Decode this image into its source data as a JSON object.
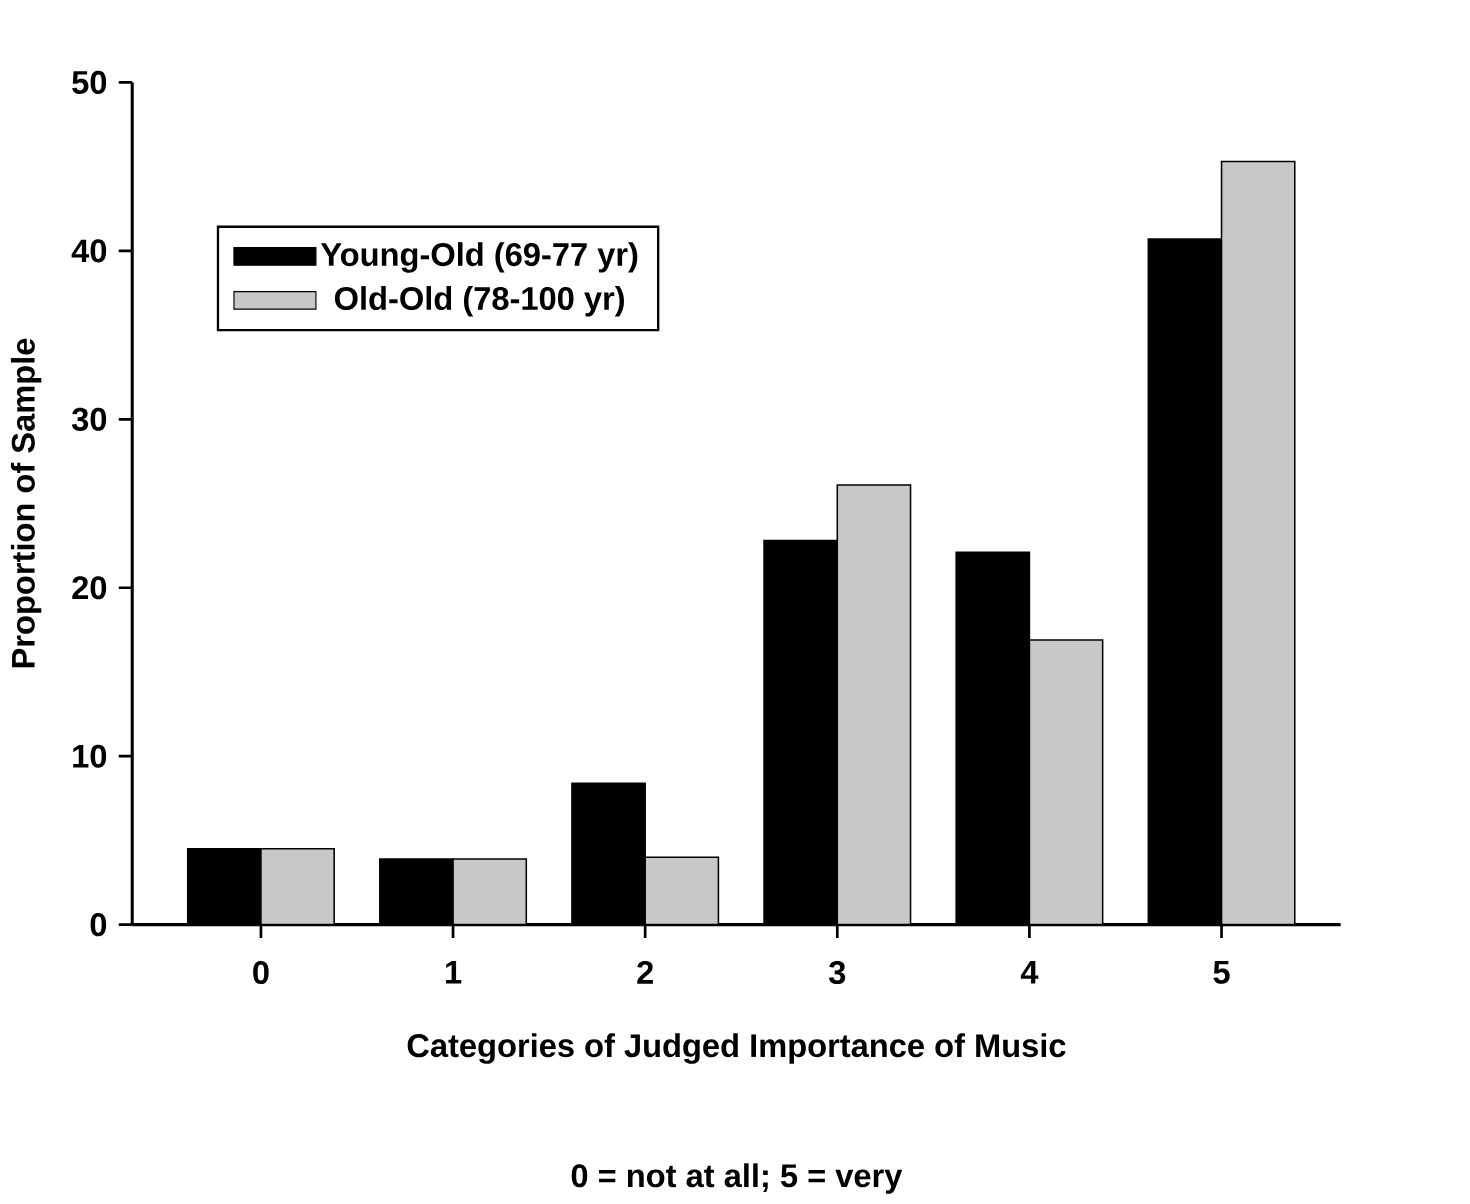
{
  "chart_data": {
    "type": "bar",
    "xlabel": "Categories of Judged Importance of Music",
    "ylabel": "Proportion of Sample",
    "annotations": [
      "0 = not at all; 5 = very"
    ],
    "categories": [
      "0",
      "1",
      "2",
      "3",
      "4",
      "5"
    ],
    "series": [
      {
        "name": "Young-Old (69-77 yr)",
        "color": "#000000",
        "values": [
          4.5,
          3.9,
          8.4,
          22.8,
          22.1,
          40.7
        ]
      },
      {
        "name": "Old-Old (78-100 yr)",
        "color": "#c8c8c8",
        "values": [
          4.5,
          3.9,
          4.0,
          26.1,
          16.9,
          45.3
        ]
      }
    ],
    "ylim": [
      0,
      50
    ],
    "yticks": [
      0,
      10,
      20,
      30,
      40,
      50
    ],
    "legend": "top left"
  }
}
